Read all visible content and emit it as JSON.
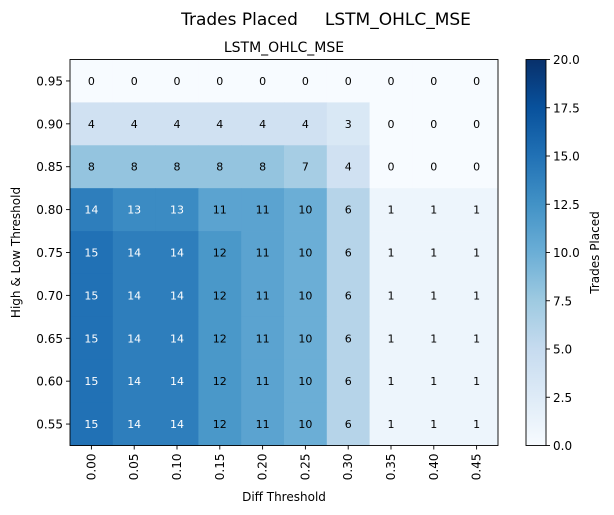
{
  "chart_data": {
    "type": "heatmap",
    "suptitle": "Trades Placed     LSTM_OHLC_MSE",
    "title": "LSTM_OHLC_MSE",
    "xlabel": "Diff Threshold",
    "ylabel": "High & Low Threshold",
    "x_categories": [
      "0.00",
      "0.05",
      "0.10",
      "0.15",
      "0.20",
      "0.25",
      "0.30",
      "0.35",
      "0.40",
      "0.45"
    ],
    "y_categories": [
      "0.95",
      "0.90",
      "0.85",
      "0.80",
      "0.75",
      "0.70",
      "0.65",
      "0.60",
      "0.55"
    ],
    "values": [
      [
        0,
        0,
        0,
        0,
        0,
        0,
        0,
        0,
        0,
        0
      ],
      [
        4,
        4,
        4,
        4,
        4,
        4,
        3,
        0,
        0,
        0
      ],
      [
        8,
        8,
        8,
        8,
        8,
        7,
        4,
        0,
        0,
        0
      ],
      [
        14,
        13,
        13,
        11,
        11,
        10,
        6,
        1,
        1,
        1
      ],
      [
        15,
        14,
        14,
        12,
        11,
        10,
        6,
        1,
        1,
        1
      ],
      [
        15,
        14,
        14,
        12,
        11,
        10,
        6,
        1,
        1,
        1
      ],
      [
        15,
        14,
        14,
        12,
        11,
        10,
        6,
        1,
        1,
        1
      ],
      [
        15,
        14,
        14,
        12,
        11,
        10,
        6,
        1,
        1,
        1
      ],
      [
        15,
        14,
        14,
        12,
        11,
        10,
        6,
        1,
        1,
        1
      ]
    ],
    "colormap": "Blues",
    "colorbar": {
      "label": "Trades Placed",
      "range": [
        0,
        20
      ],
      "ticks": [
        "0.0",
        "2.5",
        "5.0",
        "7.5",
        "10.0",
        "12.5",
        "15.0",
        "17.5",
        "20.0"
      ]
    },
    "grid": false
  }
}
